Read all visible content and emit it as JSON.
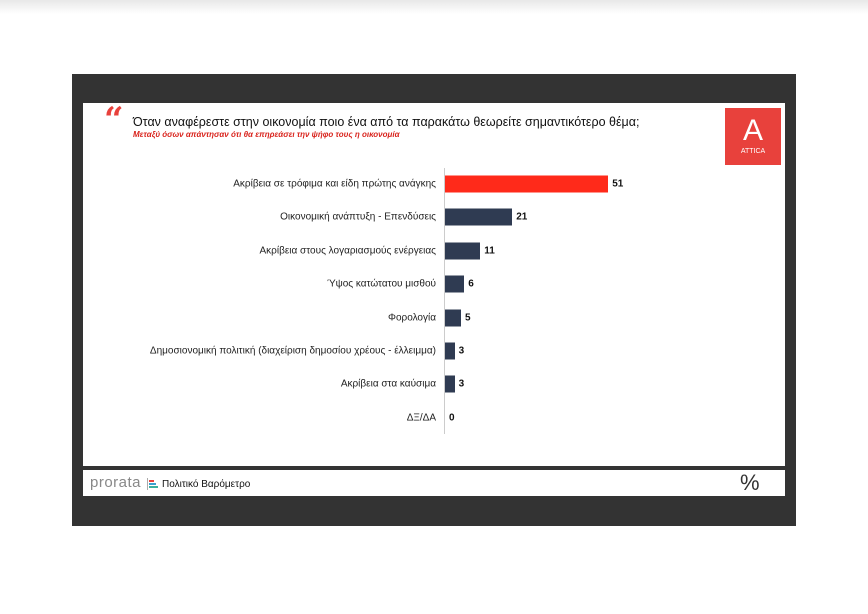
{
  "header": {
    "quote_mark": "“",
    "title": "Όταν αναφέρεστε στην οικονομία ποιο ένα από τα παρακάτω θεωρείτε σημαντικότερο θέμα;",
    "subtitle": "Μεταξύ όσων απάντησαν ότι θα επηρεάσει την ψήφο τους η οικονομία"
  },
  "logo": {
    "letter": "A",
    "name": "ATTICA"
  },
  "footer": {
    "brand": "prorata",
    "product": "Πολιτικό Βαρόμετρο",
    "unit": "%"
  },
  "colors": {
    "highlight": "#ff2a1a",
    "bar": "#2f3b52"
  },
  "chart_data": {
    "type": "bar",
    "orientation": "horizontal",
    "title": "Όταν αναφέρεστε στην οικονομία ποιο ένα από τα παρακάτω θεωρείτε σημαντικότερο θέμα;",
    "categories": [
      "Ακρίβεια σε τρόφιμα και είδη πρώτης ανάγκης",
      "Οικονομική ανάπτυξη - Επενδύσεις",
      "Ακρίβεια στους λογαριασμούς ενέργειας",
      "Ύψος κατώτατου μισθού",
      "Φορολογία",
      "Δημοσιονομική πολιτική (διαχείριση δημοσίου χρέους - έλλειμμα)",
      "Ακρίβεια στα καύσιμα",
      "ΔΞ/ΔΑ"
    ],
    "values": [
      51,
      21,
      11,
      6,
      5,
      3,
      3,
      0
    ],
    "xlim": [
      0,
      60
    ],
    "unit": "%"
  }
}
